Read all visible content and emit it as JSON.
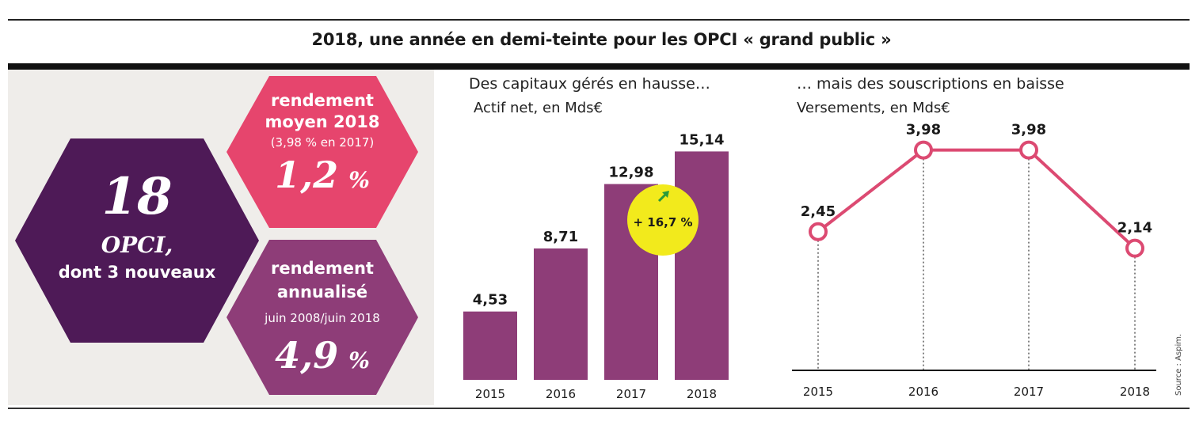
{
  "title": "2018, une année en demi-teinte pour les OPCI « grand public »",
  "left_panel": {
    "main_number": "18",
    "main_label": "OPCI,",
    "main_sub": "dont 3 nouveaux",
    "top_hex": {
      "line1": "rendement",
      "line2": "moyen 2018",
      "note": "(3,98 % en 2017)",
      "value": "1,2",
      "unit": "%"
    },
    "bottom_hex": {
      "line1": "rendement",
      "line2": "annualisé",
      "note": "juin 2008/juin 2018",
      "value": "4,9",
      "unit": "%"
    },
    "colors": {
      "dark": "#4e1a57",
      "pink": "#e6456d",
      "purple": "#8e3d78"
    }
  },
  "source": "Source : Aspim.",
  "chart_data": [
    {
      "type": "bar",
      "title": "Des capitaux gérés en hausse…",
      "subtitle": "Actif net, en Mds€",
      "categories": [
        "2015",
        "2016",
        "2017",
        "2018"
      ],
      "values": [
        4.53,
        8.71,
        12.98,
        15.14
      ],
      "value_labels": [
        "4,53",
        "8,71",
        "12,98",
        "15,14"
      ],
      "ylim": [
        0,
        16
      ],
      "color": "#8e3d78",
      "annotation": {
        "text": "+ 16,7 %",
        "color": "#f2ea1c",
        "arrow_color": "#2a9a3a",
        "arrow": "up-right"
      }
    },
    {
      "type": "line",
      "title": "… mais des souscriptions en baisse",
      "subtitle": "Versements, en Mds€",
      "categories": [
        "2015",
        "2016",
        "2017",
        "2018"
      ],
      "values": [
        2.45,
        3.98,
        3.98,
        2.14
      ],
      "value_labels": [
        "2,45",
        "3,98",
        "3,98",
        "2,14"
      ],
      "ylim": [
        0,
        4.3
      ],
      "color": "#dc4a72",
      "grid": false
    }
  ]
}
